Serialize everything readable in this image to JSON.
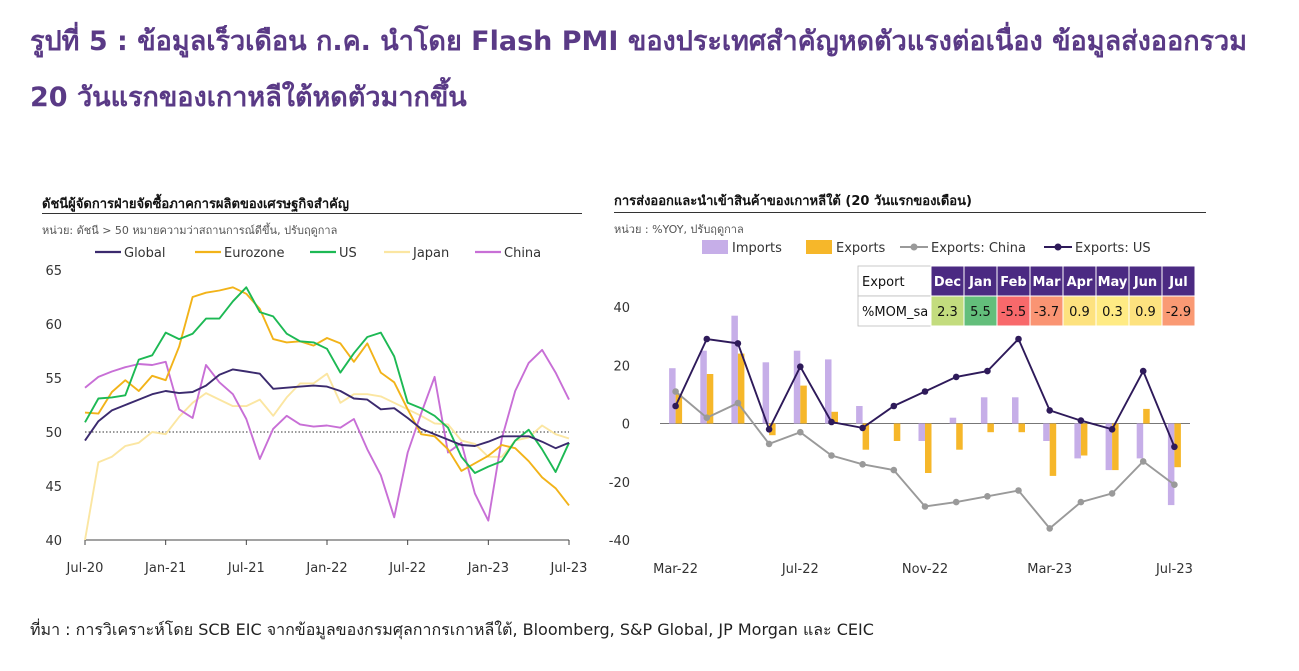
{
  "title": "รูปที่ 5 : ข้อมูลเร็วเดือน ก.ค. นำโดย Flash PMI ของประเทศสำคัญหดตัวแรงต่อเนื่อง ข้อมูลส่งออกรวม 20 วันแรกของเกาหลีใต้หดตัวมากขึ้น",
  "source": "ที่มา : การวิเคราะห์โดย SCB EIC จากข้อมูลของกรมศุลกากรเกาหลีใต้, Bloomberg, S&P Global, JP Morgan และ CEIC",
  "colors": {
    "global": "#3b2a6e",
    "eurozone": "#f2b319",
    "us": "#1db954",
    "japan": "#fbe6a2",
    "china": "#c86fd6",
    "imports": "#c6aee8",
    "exports": "#f6b72a",
    "exports_china": "#9a9a9a",
    "exports_us": "#2e1a5a"
  },
  "chart_data": [
    {
      "type": "line",
      "title": "ดัชนีผู้จัดการฝ่ายจัดซื้อภาคการผลิตของเศรษฐกิจสำคัญ",
      "unit": "หน่วย: ดัชนี > 50 หมายความว่าสถานการณ์ดีขึ้น, ปรับฤดูกาล",
      "x_tick_labels": [
        "Jul-20",
        "Jan-21",
        "Jul-21",
        "Jan-22",
        "Jul-22",
        "Jan-23",
        "Jul-23"
      ],
      "x_start": "2020-07",
      "x_end": "2023-07",
      "ylim": [
        40,
        65
      ],
      "y_ticks": [
        40,
        45,
        50,
        55,
        60,
        65
      ],
      "reference_line": 50,
      "legend_position": "top",
      "series": [
        {
          "name": "Global",
          "key": "global",
          "values": [
            49.2,
            51.0,
            52.0,
            52.5,
            53.0,
            53.5,
            53.8,
            53.6,
            53.7,
            54.3,
            55.3,
            55.8,
            55.6,
            55.4,
            54.0,
            54.1,
            54.2,
            54.3,
            54.2,
            53.8,
            53.1,
            53.0,
            52.1,
            52.2,
            51.3,
            50.3,
            49.8,
            49.3,
            48.8,
            48.7,
            49.1,
            49.6,
            49.6,
            49.6,
            49.1,
            48.5,
            49.0
          ]
        },
        {
          "name": "Eurozone",
          "key": "eurozone",
          "values": [
            51.8,
            51.7,
            53.7,
            54.8,
            53.8,
            55.2,
            54.8,
            57.9,
            62.5,
            62.9,
            63.1,
            63.4,
            62.8,
            61.4,
            58.6,
            58.3,
            58.4,
            58.0,
            58.7,
            58.2,
            56.5,
            58.2,
            55.5,
            54.6,
            52.1,
            49.8,
            49.6,
            48.4,
            46.4,
            47.1,
            47.8,
            48.8,
            48.5,
            47.3,
            45.8,
            44.8,
            43.2
          ]
        },
        {
          "name": "US",
          "key": "us",
          "values": [
            50.9,
            53.1,
            53.2,
            53.4,
            56.7,
            57.1,
            59.2,
            58.6,
            59.1,
            60.5,
            60.5,
            62.1,
            63.4,
            61.1,
            60.7,
            59.1,
            58.4,
            58.3,
            57.7,
            55.5,
            57.3,
            58.8,
            59.2,
            57.0,
            52.7,
            52.2,
            51.5,
            50.4,
            47.7,
            46.2,
            46.8,
            47.3,
            49.2,
            50.2,
            48.4,
            46.3,
            49.0
          ]
        },
        {
          "name": "Japan",
          "key": "japan",
          "values": [
            40.0,
            47.2,
            47.7,
            48.7,
            49.0,
            50.0,
            49.8,
            51.4,
            52.7,
            53.6,
            53.0,
            52.4,
            52.4,
            53.0,
            51.5,
            53.2,
            54.5,
            54.5,
            55.4,
            52.7,
            53.5,
            53.5,
            53.3,
            52.7,
            52.1,
            51.5,
            50.8,
            50.7,
            49.2,
            48.9,
            47.7,
            47.7,
            49.2,
            49.5,
            50.6,
            49.8,
            49.4
          ]
        },
        {
          "name": "China",
          "key": "china",
          "values": [
            54.1,
            55.1,
            55.6,
            56.0,
            56.3,
            56.2,
            56.5,
            52.1,
            51.3,
            56.2,
            54.6,
            53.5,
            51.2,
            47.5,
            50.3,
            51.5,
            50.7,
            50.5,
            50.6,
            50.4,
            51.2,
            48.4,
            46.0,
            42.1,
            48.1,
            51.7,
            55.1,
            48.1,
            49.0,
            44.3,
            41.8,
            49.4,
            53.8,
            56.4,
            57.6,
            55.5,
            53.0
          ]
        }
      ]
    },
    {
      "type": "bar",
      "title": "การส่งออกและนำเข้าสินค้าของเกาหลีใต้ (20 วันแรกของเดือน)",
      "unit": "หน่วย : %YOY, ปรับฤดูกาล",
      "x_tick_labels": [
        "Mar-22",
        "Jul-22",
        "Nov-22",
        "Mar-23",
        "Jul-23"
      ],
      "categories": [
        "Mar-22",
        "Apr-22",
        "May-22",
        "Jun-22",
        "Jul-22",
        "Aug-22",
        "Sep-22",
        "Oct-22",
        "Nov-22",
        "Dec-22",
        "Jan-23",
        "Feb-23",
        "Mar-23",
        "Apr-23",
        "May-23",
        "Jun-23",
        "Jul-23"
      ],
      "ylim": [
        -40,
        40
      ],
      "y_ticks": [
        -40,
        -20,
        0,
        20,
        40
      ],
      "legend_position": "top",
      "bar_series": [
        {
          "name": "Imports",
          "key": "imports",
          "values": [
            19,
            25,
            37,
            21,
            25,
            22,
            6,
            0,
            -6,
            2,
            9,
            9,
            -6,
            -12,
            -16,
            -12,
            -28
          ]
        },
        {
          "name": "Exports",
          "key": "exports",
          "values": [
            10,
            17,
            24,
            -4,
            13,
            4,
            -9,
            -6,
            -17,
            -9,
            -3,
            -3,
            -18,
            -11,
            -16,
            5,
            -15
          ]
        }
      ],
      "line_series": [
        {
          "name": "Exports: China",
          "key": "exports_china",
          "values": [
            11,
            2,
            7,
            -7,
            -3,
            -11,
            -14,
            -16,
            -28.5,
            -27,
            -25,
            -23,
            -36,
            -27,
            -24,
            -13,
            -21
          ]
        },
        {
          "name": "Exports: US",
          "key": "exports_us",
          "values": [
            6,
            29,
            27.5,
            -2,
            19.5,
            0.5,
            -1.5,
            6,
            11,
            16,
            18,
            29,
            4.5,
            1,
            -2,
            18,
            -8
          ]
        }
      ],
      "mom_table": {
        "header": "Export",
        "row_label": "%MOM_sa",
        "months": [
          "Dec",
          "Jan",
          "Feb",
          "Mar",
          "Apr",
          "May",
          "Jun",
          "Jul"
        ],
        "values": [
          "2.3",
          "5.5",
          "-5.5",
          "-3.7",
          "0.9",
          "0.3",
          "0.9",
          "-2.9"
        ],
        "cell_colors": [
          "#c3dc7e",
          "#63be7b",
          "#f8696b",
          "#fa9473",
          "#fde27f",
          "#ffeb84",
          "#fde27f",
          "#fa9a74"
        ]
      }
    }
  ]
}
